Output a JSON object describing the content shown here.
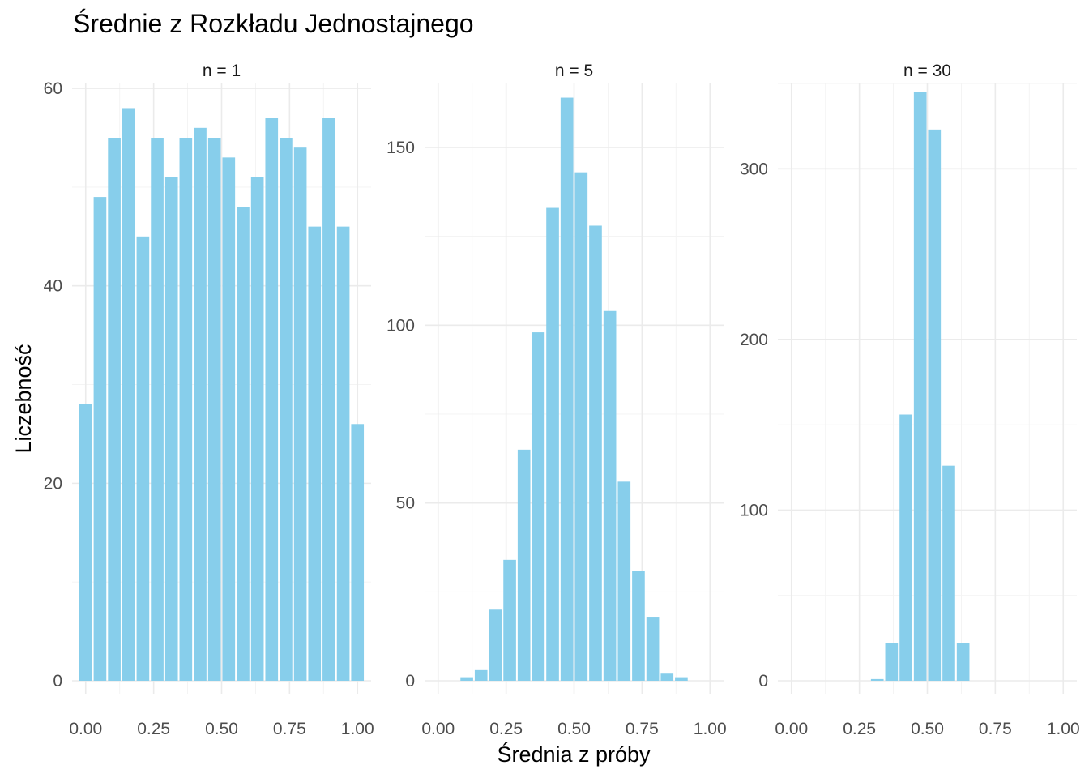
{
  "chart_data": {
    "type": "bar",
    "title": "Średnie z Rozkładu Jednostajnego",
    "xlabel": "Średnia z próby",
    "ylabel": "Liczebność",
    "bar_color": "#87CEEB",
    "grid": true,
    "facets": [
      {
        "label": "n = 1",
        "xlim": [
          -0.05,
          1.05
        ],
        "ylim": [
          0,
          60.5
        ],
        "x_ticks": [
          0,
          0.25,
          0.5,
          0.75,
          1
        ],
        "x_tick_labels": [
          "0.00",
          "0.25",
          "0.50",
          "0.75",
          "1.00"
        ],
        "y_ticks": [
          0,
          20,
          40,
          60
        ],
        "y_tick_labels": [
          "0",
          "20",
          "40",
          "60"
        ],
        "bin_width": 0.0526,
        "series": [
          {
            "x": [
              0.0,
              0.0526,
              0.1053,
              0.1579,
              0.2105,
              0.2632,
              0.3158,
              0.3684,
              0.4211,
              0.4737,
              0.5263,
              0.5789,
              0.6316,
              0.6842,
              0.7368,
              0.7895,
              0.8421,
              0.8947,
              0.9474,
              1.0
            ],
            "values": [
              28,
              49,
              55,
              58,
              45,
              55,
              51,
              55,
              56,
              55,
              53,
              48,
              51,
              57,
              55,
              54,
              46,
              57,
              46,
              26
            ]
          }
        ]
      },
      {
        "label": "n = 5",
        "xlim": [
          -0.05,
          1.05
        ],
        "ylim": [
          0,
          168
        ],
        "x_ticks": [
          0,
          0.25,
          0.5,
          0.75,
          1
        ],
        "x_tick_labels": [
          "0.00",
          "0.25",
          "0.50",
          "0.75",
          "1.00"
        ],
        "y_ticks": [
          0,
          50,
          100,
          150
        ],
        "y_tick_labels": [
          "0",
          "50",
          "100",
          "150"
        ],
        "bin_width": 0.0526,
        "series": [
          {
            "x": [
              0.0,
              0.0526,
              0.1053,
              0.1579,
              0.2105,
              0.2632,
              0.3158,
              0.3684,
              0.4211,
              0.4737,
              0.5263,
              0.5789,
              0.6316,
              0.6842,
              0.7368,
              0.7895,
              0.8421,
              0.8947,
              0.9474,
              1.0
            ],
            "values": [
              0,
              0,
              1,
              3,
              20,
              34,
              65,
              98,
              133,
              164,
              143,
              128,
              104,
              56,
              31,
              18,
              2,
              1,
              0,
              0
            ]
          }
        ]
      },
      {
        "label": "n = 30",
        "xlim": [
          -0.05,
          1.05
        ],
        "ylim": [
          0,
          350
        ],
        "x_ticks": [
          0,
          0.25,
          0.5,
          0.75,
          1
        ],
        "x_tick_labels": [
          "0.00",
          "0.25",
          "0.50",
          "0.75",
          "1.00"
        ],
        "y_ticks": [
          0,
          100,
          200,
          300
        ],
        "y_tick_labels": [
          "0",
          "100",
          "200",
          "300"
        ],
        "bin_width": 0.0526,
        "series": [
          {
            "x": [
              0.0,
              0.0526,
              0.1053,
              0.1579,
              0.2105,
              0.2632,
              0.3158,
              0.3684,
              0.4211,
              0.4737,
              0.5263,
              0.5789,
              0.6316,
              0.6842,
              0.7368,
              0.7895,
              0.8421,
              0.8947,
              0.9474,
              1.0
            ],
            "values": [
              0,
              0,
              0,
              0,
              0,
              0,
              1,
              22,
              156,
              345,
              323,
              126,
              22,
              0,
              0,
              0,
              0,
              0,
              0,
              0
            ]
          }
        ]
      }
    ]
  }
}
